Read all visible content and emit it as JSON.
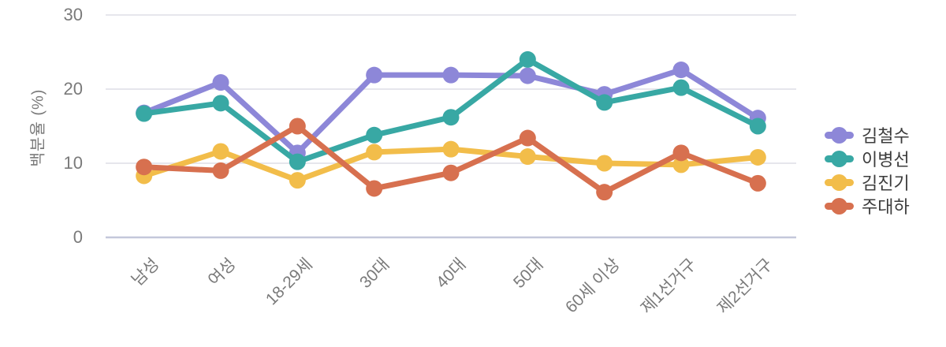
{
  "chart_data": {
    "type": "line",
    "title": "",
    "xlabel": "",
    "ylabel": "백분율 (%)",
    "ylim": [
      0,
      30
    ],
    "yticks": [
      0,
      10,
      20,
      30
    ],
    "grid": true,
    "legend_position": "right",
    "categories": [
      "남성",
      "여성",
      "18-29세",
      "30대",
      "40대",
      "50대",
      "60세 이상",
      "제1선거구",
      "제2선거구"
    ],
    "series": [
      {
        "name": "김철수",
        "color": "#8d87d8",
        "values": [
          16.8,
          20.9,
          11.4,
          21.9,
          21.9,
          21.8,
          19.3,
          22.6,
          16.1
        ]
      },
      {
        "name": "이병선",
        "color": "#38a8a4",
        "values": [
          16.7,
          18.1,
          10.2,
          13.8,
          16.2,
          24.0,
          18.2,
          20.2,
          15.0
        ]
      },
      {
        "name": "김진기",
        "color": "#f2bd4a",
        "values": [
          8.3,
          11.6,
          7.7,
          11.5,
          11.9,
          10.9,
          10.0,
          9.8,
          10.8
        ]
      },
      {
        "name": "주대하",
        "color": "#d7704f",
        "values": [
          9.5,
          9.0,
          15.0,
          6.6,
          8.7,
          13.4,
          6.1,
          11.4,
          7.3
        ]
      }
    ]
  },
  "colors": {
    "background": "#ffffff",
    "gridline": "#e6e6ec",
    "zero_line": "#c4c8da",
    "tick_text": "#7a7a7a",
    "legend_text": "#3c3c3c"
  }
}
